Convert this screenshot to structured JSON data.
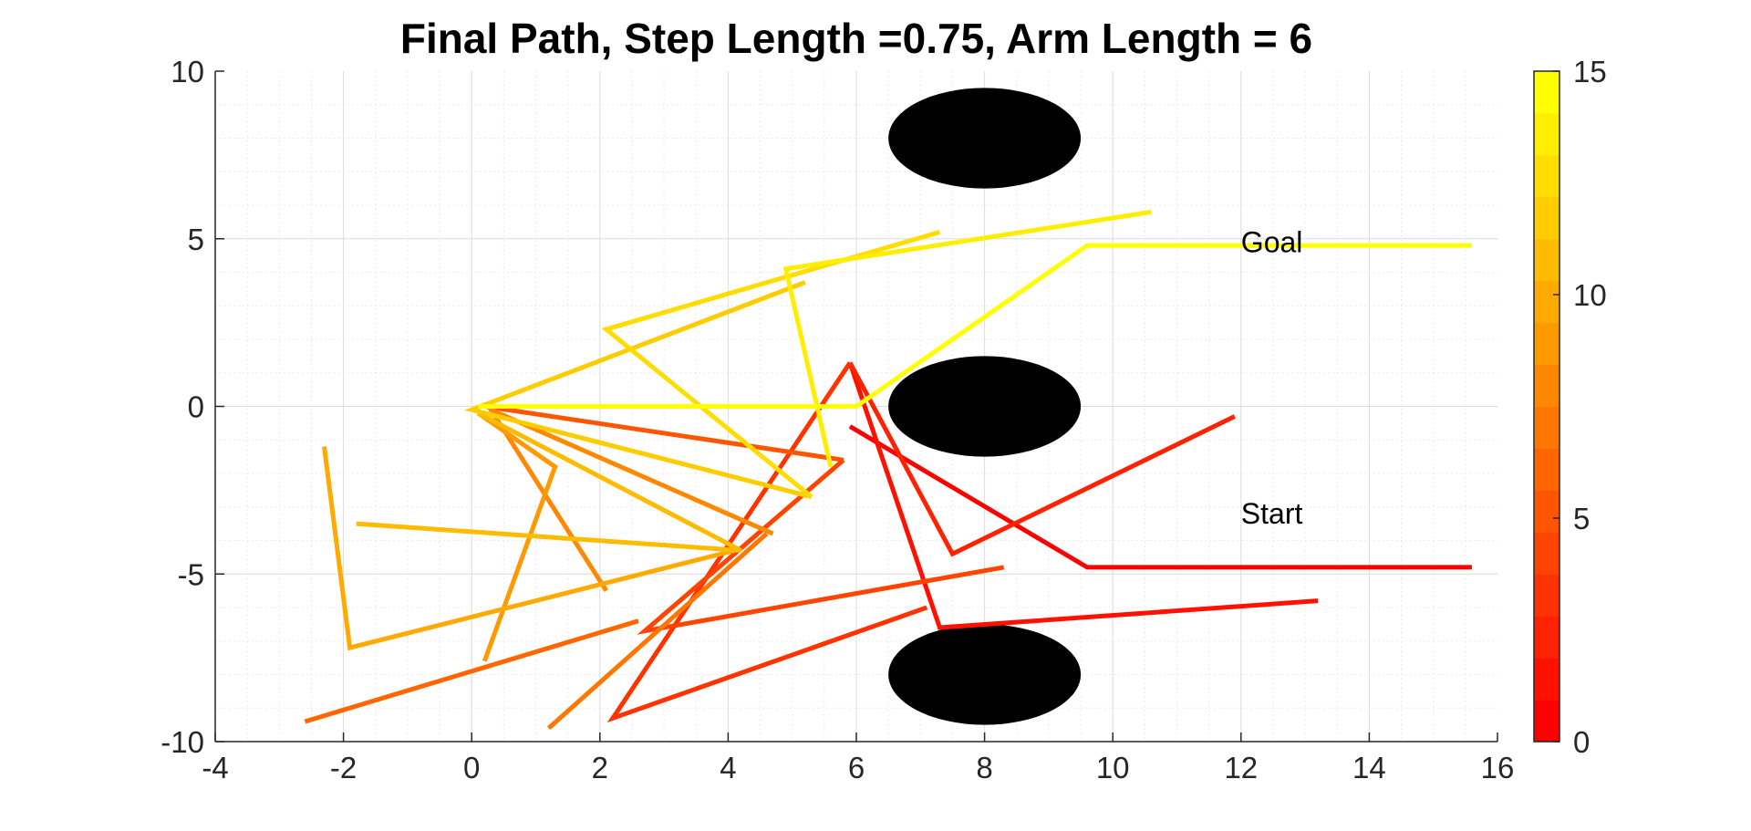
{
  "chart_data": {
    "type": "line",
    "title": "Final Path, Step Length =0.75, Arm Length = 6",
    "xlabel": "",
    "ylabel": "",
    "xlim": [
      -4,
      16
    ],
    "ylim": [
      -10,
      10
    ],
    "x_ticks": [
      "-4",
      "-2",
      "0",
      "2",
      "4",
      "6",
      "8",
      "10",
      "12",
      "14",
      "16"
    ],
    "y_ticks": [
      "10",
      "5",
      "0",
      "-5",
      "-10"
    ],
    "grid": true,
    "colorbar": {
      "range": [
        0,
        15
      ],
      "ticks": [
        "0",
        "5",
        "10",
        "15"
      ],
      "colormap": "autumn",
      "levels": 16
    },
    "colors": {
      "low": "#ff0000",
      "high": "#ffff00",
      "obstacle": "#000000",
      "grid": "#e0e0e0",
      "axis": "#262626"
    },
    "obstacles": [
      {
        "cx": 8,
        "cy": 8,
        "rx": 1.5,
        "ry": 1.5
      },
      {
        "cx": 8,
        "cy": 0,
        "rx": 1.5,
        "ry": 1.5
      },
      {
        "cx": 8,
        "cy": -8,
        "rx": 1.5,
        "ry": 1.5
      }
    ],
    "annotations": [
      {
        "text": "Goal",
        "x": 12,
        "y": 4.9
      },
      {
        "text": "Start",
        "x": 12,
        "y": -3.2
      }
    ],
    "arms": [
      {
        "step": 0,
        "points": [
          [
            15.6,
            -4.8
          ],
          [
            9.6,
            -4.8
          ],
          [
            5.9,
            -0.6
          ]
        ]
      },
      {
        "step": 1,
        "points": [
          [
            13.2,
            -5.8
          ],
          [
            7.3,
            -6.6
          ],
          [
            5.9,
            1.3
          ]
        ]
      },
      {
        "step": 2,
        "points": [
          [
            11.9,
            -0.3
          ],
          [
            7.5,
            -4.4
          ],
          [
            5.9,
            1.3
          ]
        ]
      },
      {
        "step": 3,
        "points": [
          [
            7.1,
            -6.0
          ],
          [
            2.2,
            -9.3
          ],
          [
            5.9,
            1.3
          ]
        ]
      },
      {
        "step": 4,
        "points": [
          [
            8.3,
            -4.8
          ],
          [
            2.7,
            -6.7
          ],
          [
            5.8,
            -1.6
          ]
        ]
      },
      {
        "step": 5,
        "points": [
          [
            0.2,
            0.0
          ],
          [
            5.8,
            -1.6
          ]
        ]
      },
      {
        "step": 6,
        "points": [
          [
            -2.6,
            -9.4
          ],
          [
            2.6,
            -6.4
          ]
        ]
      },
      {
        "step": 7,
        "points": [
          [
            1.2,
            -9.6
          ],
          [
            4.6,
            -3.8
          ]
        ]
      },
      {
        "step": 8,
        "points": [
          [
            2.1,
            -5.5
          ],
          [
            0.3,
            -0.1
          ],
          [
            4.7,
            -3.8
          ]
        ]
      },
      {
        "step": 9,
        "points": [
          [
            0.2,
            -7.6
          ],
          [
            1.3,
            -1.8
          ],
          [
            0.1,
            -0.2
          ]
        ]
      },
      {
        "step": 10,
        "points": [
          [
            -2.3,
            -1.2
          ],
          [
            -1.9,
            -7.2
          ],
          [
            4.1,
            -4.3
          ]
        ]
      },
      {
        "step": 11,
        "points": [
          [
            -1.8,
            -3.5
          ],
          [
            4.2,
            -4.3
          ],
          [
            0.1,
            -0.2
          ]
        ]
      },
      {
        "step": 12,
        "points": [
          [
            5.3,
            -2.7
          ],
          [
            0.0,
            -0.1
          ],
          [
            5.2,
            3.7
          ]
        ]
      },
      {
        "step": 13,
        "points": [
          [
            7.3,
            5.2
          ],
          [
            2.1,
            2.3
          ],
          [
            5.3,
            -2.7
          ]
        ]
      },
      {
        "step": 14,
        "points": [
          [
            10.6,
            5.8
          ],
          [
            4.9,
            4.1
          ],
          [
            5.6,
            -1.8
          ]
        ]
      },
      {
        "step": 15,
        "points": [
          [
            15.6,
            4.8
          ],
          [
            9.6,
            4.8
          ],
          [
            6.0,
            0.0
          ],
          [
            0.1,
            0.0
          ]
        ]
      }
    ]
  }
}
